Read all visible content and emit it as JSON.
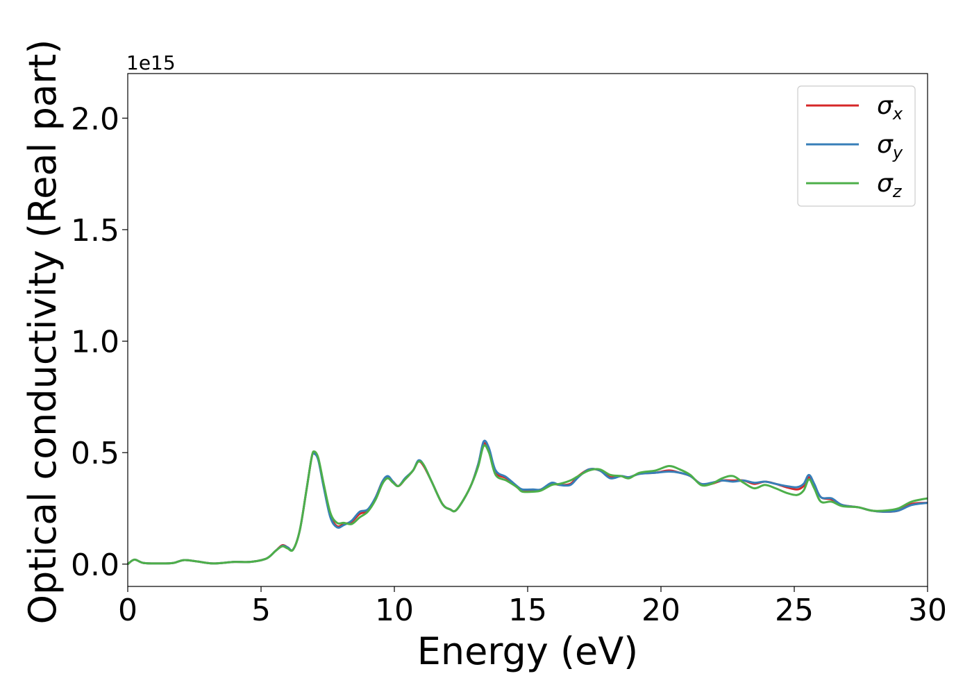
{
  "chart_data": {
    "type": "line",
    "xlabel": "Energy (eV)",
    "ylabel": "Optical conductivity (Real part)",
    "y_offset_label": "1e15",
    "xlim": [
      0,
      30
    ],
    "ylim": [
      -0.1,
      2.2
    ],
    "x_ticks": [
      0,
      5,
      10,
      15,
      20,
      25,
      30
    ],
    "x_tick_labels": [
      "0",
      "5",
      "10",
      "15",
      "20",
      "25",
      "30"
    ],
    "y_ticks": [
      0.0,
      0.5,
      1.0,
      1.5,
      2.0
    ],
    "y_tick_labels": [
      "0.0",
      "0.5",
      "1.0",
      "1.5",
      "2.0"
    ],
    "grid": false,
    "legend_position": "top-right",
    "series": [
      {
        "name": "σx",
        "name_base": "σ",
        "name_sub": "x",
        "color": "#d62728",
        "points": [
          [
            0,
            0.0
          ],
          [
            0.25,
            0.02
          ],
          [
            0.6,
            0.005
          ],
          [
            1.2,
            0.003
          ],
          [
            1.7,
            0.005
          ],
          [
            2.1,
            0.018
          ],
          [
            2.6,
            0.012
          ],
          [
            3.2,
            0.003
          ],
          [
            4.0,
            0.01
          ],
          [
            4.6,
            0.01
          ],
          [
            5.2,
            0.025
          ],
          [
            5.55,
            0.06
          ],
          [
            5.8,
            0.085
          ],
          [
            6.0,
            0.075
          ],
          [
            6.2,
            0.065
          ],
          [
            6.45,
            0.15
          ],
          [
            6.7,
            0.33
          ],
          [
            6.9,
            0.48
          ],
          [
            7.0,
            0.5
          ],
          [
            7.15,
            0.47
          ],
          [
            7.35,
            0.35
          ],
          [
            7.6,
            0.22
          ],
          [
            7.85,
            0.17
          ],
          [
            8.1,
            0.18
          ],
          [
            8.4,
            0.19
          ],
          [
            8.7,
            0.225
          ],
          [
            9.0,
            0.24
          ],
          [
            9.3,
            0.3
          ],
          [
            9.55,
            0.37
          ],
          [
            9.75,
            0.39
          ],
          [
            9.95,
            0.37
          ],
          [
            10.15,
            0.35
          ],
          [
            10.4,
            0.38
          ],
          [
            10.7,
            0.42
          ],
          [
            10.9,
            0.46
          ],
          [
            11.1,
            0.44
          ],
          [
            11.4,
            0.37
          ],
          [
            11.8,
            0.27
          ],
          [
            12.1,
            0.245
          ],
          [
            12.3,
            0.24
          ],
          [
            12.6,
            0.29
          ],
          [
            12.9,
            0.36
          ],
          [
            13.15,
            0.45
          ],
          [
            13.35,
            0.54
          ],
          [
            13.55,
            0.51
          ],
          [
            13.8,
            0.41
          ],
          [
            14.2,
            0.385
          ],
          [
            14.6,
            0.345
          ],
          [
            14.8,
            0.33
          ],
          [
            15.2,
            0.33
          ],
          [
            15.5,
            0.335
          ],
          [
            15.9,
            0.36
          ],
          [
            16.2,
            0.355
          ],
          [
            16.6,
            0.36
          ],
          [
            16.9,
            0.395
          ],
          [
            17.3,
            0.425
          ],
          [
            17.7,
            0.42
          ],
          [
            18.1,
            0.39
          ],
          [
            18.5,
            0.395
          ],
          [
            18.8,
            0.39
          ],
          [
            19.2,
            0.405
          ],
          [
            19.8,
            0.41
          ],
          [
            20.3,
            0.42
          ],
          [
            20.7,
            0.41
          ],
          [
            21.1,
            0.395
          ],
          [
            21.5,
            0.36
          ],
          [
            21.9,
            0.36
          ],
          [
            22.3,
            0.375
          ],
          [
            22.7,
            0.375
          ],
          [
            23.1,
            0.375
          ],
          [
            23.5,
            0.36
          ],
          [
            23.9,
            0.37
          ],
          [
            24.3,
            0.36
          ],
          [
            24.7,
            0.345
          ],
          [
            25.1,
            0.335
          ],
          [
            25.35,
            0.35
          ],
          [
            25.55,
            0.39
          ],
          [
            25.75,
            0.355
          ],
          [
            26.0,
            0.3
          ],
          [
            26.4,
            0.29
          ],
          [
            26.8,
            0.265
          ],
          [
            27.4,
            0.255
          ],
          [
            27.9,
            0.24
          ],
          [
            28.4,
            0.235
          ],
          [
            28.9,
            0.24
          ],
          [
            29.4,
            0.27
          ],
          [
            30.0,
            0.275
          ]
        ]
      },
      {
        "name": "σy",
        "name_base": "σ",
        "name_sub": "y",
        "color": "#377eb8",
        "points": [
          [
            0,
            0.0
          ],
          [
            0.25,
            0.02
          ],
          [
            0.6,
            0.005
          ],
          [
            1.2,
            0.003
          ],
          [
            1.7,
            0.005
          ],
          [
            2.1,
            0.018
          ],
          [
            2.6,
            0.012
          ],
          [
            3.2,
            0.003
          ],
          [
            4.0,
            0.01
          ],
          [
            4.6,
            0.01
          ],
          [
            5.2,
            0.025
          ],
          [
            5.55,
            0.06
          ],
          [
            5.8,
            0.082
          ],
          [
            6.0,
            0.075
          ],
          [
            6.2,
            0.065
          ],
          [
            6.45,
            0.15
          ],
          [
            6.7,
            0.33
          ],
          [
            6.9,
            0.48
          ],
          [
            7.0,
            0.495
          ],
          [
            7.15,
            0.465
          ],
          [
            7.35,
            0.345
          ],
          [
            7.6,
            0.21
          ],
          [
            7.85,
            0.165
          ],
          [
            8.1,
            0.175
          ],
          [
            8.4,
            0.195
          ],
          [
            8.7,
            0.235
          ],
          [
            9.0,
            0.245
          ],
          [
            9.3,
            0.3
          ],
          [
            9.55,
            0.37
          ],
          [
            9.75,
            0.395
          ],
          [
            9.95,
            0.37
          ],
          [
            10.15,
            0.35
          ],
          [
            10.4,
            0.385
          ],
          [
            10.7,
            0.42
          ],
          [
            10.9,
            0.465
          ],
          [
            11.1,
            0.445
          ],
          [
            11.4,
            0.37
          ],
          [
            11.8,
            0.27
          ],
          [
            12.1,
            0.245
          ],
          [
            12.3,
            0.24
          ],
          [
            12.6,
            0.29
          ],
          [
            12.9,
            0.36
          ],
          [
            13.15,
            0.45
          ],
          [
            13.35,
            0.55
          ],
          [
            13.55,
            0.52
          ],
          [
            13.8,
            0.42
          ],
          [
            14.2,
            0.39
          ],
          [
            14.6,
            0.35
          ],
          [
            14.8,
            0.335
          ],
          [
            15.2,
            0.335
          ],
          [
            15.5,
            0.335
          ],
          [
            15.9,
            0.365
          ],
          [
            16.2,
            0.355
          ],
          [
            16.6,
            0.355
          ],
          [
            16.9,
            0.39
          ],
          [
            17.3,
            0.425
          ],
          [
            17.7,
            0.42
          ],
          [
            18.1,
            0.385
          ],
          [
            18.5,
            0.395
          ],
          [
            18.8,
            0.39
          ],
          [
            19.2,
            0.405
          ],
          [
            19.8,
            0.41
          ],
          [
            20.3,
            0.415
          ],
          [
            20.7,
            0.41
          ],
          [
            21.1,
            0.395
          ],
          [
            21.5,
            0.36
          ],
          [
            21.9,
            0.365
          ],
          [
            22.3,
            0.375
          ],
          [
            22.7,
            0.37
          ],
          [
            23.1,
            0.375
          ],
          [
            23.5,
            0.365
          ],
          [
            23.9,
            0.37
          ],
          [
            24.3,
            0.36
          ],
          [
            24.7,
            0.35
          ],
          [
            25.1,
            0.345
          ],
          [
            25.35,
            0.36
          ],
          [
            25.55,
            0.4
          ],
          [
            25.75,
            0.36
          ],
          [
            26.0,
            0.3
          ],
          [
            26.4,
            0.295
          ],
          [
            26.8,
            0.265
          ],
          [
            27.4,
            0.255
          ],
          [
            27.9,
            0.24
          ],
          [
            28.4,
            0.235
          ],
          [
            28.9,
            0.24
          ],
          [
            29.4,
            0.265
          ],
          [
            30.0,
            0.275
          ]
        ]
      },
      {
        "name": "σz",
        "name_base": "σ",
        "name_sub": "z",
        "color": "#4daf4a",
        "points": [
          [
            0,
            0.0
          ],
          [
            0.25,
            0.02
          ],
          [
            0.6,
            0.005
          ],
          [
            1.2,
            0.003
          ],
          [
            1.7,
            0.005
          ],
          [
            2.1,
            0.018
          ],
          [
            2.6,
            0.012
          ],
          [
            3.2,
            0.003
          ],
          [
            4.0,
            0.01
          ],
          [
            4.6,
            0.01
          ],
          [
            5.2,
            0.025
          ],
          [
            5.55,
            0.06
          ],
          [
            5.8,
            0.08
          ],
          [
            6.0,
            0.07
          ],
          [
            6.2,
            0.065
          ],
          [
            6.45,
            0.15
          ],
          [
            6.7,
            0.33
          ],
          [
            6.9,
            0.48
          ],
          [
            7.0,
            0.505
          ],
          [
            7.15,
            0.475
          ],
          [
            7.35,
            0.36
          ],
          [
            7.6,
            0.23
          ],
          [
            7.85,
            0.185
          ],
          [
            8.1,
            0.185
          ],
          [
            8.4,
            0.18
          ],
          [
            8.7,
            0.21
          ],
          [
            9.0,
            0.235
          ],
          [
            9.3,
            0.29
          ],
          [
            9.55,
            0.36
          ],
          [
            9.75,
            0.385
          ],
          [
            9.95,
            0.365
          ],
          [
            10.15,
            0.35
          ],
          [
            10.4,
            0.38
          ],
          [
            10.7,
            0.42
          ],
          [
            10.9,
            0.46
          ],
          [
            11.1,
            0.445
          ],
          [
            11.4,
            0.37
          ],
          [
            11.8,
            0.27
          ],
          [
            12.1,
            0.245
          ],
          [
            12.3,
            0.24
          ],
          [
            12.6,
            0.29
          ],
          [
            12.9,
            0.36
          ],
          [
            13.15,
            0.44
          ],
          [
            13.35,
            0.53
          ],
          [
            13.55,
            0.5
          ],
          [
            13.8,
            0.4
          ],
          [
            14.2,
            0.375
          ],
          [
            14.6,
            0.345
          ],
          [
            14.8,
            0.325
          ],
          [
            15.2,
            0.325
          ],
          [
            15.5,
            0.33
          ],
          [
            15.9,
            0.355
          ],
          [
            16.2,
            0.36
          ],
          [
            16.6,
            0.375
          ],
          [
            16.9,
            0.395
          ],
          [
            17.3,
            0.42
          ],
          [
            17.7,
            0.425
          ],
          [
            18.1,
            0.4
          ],
          [
            18.5,
            0.395
          ],
          [
            18.8,
            0.385
          ],
          [
            19.2,
            0.41
          ],
          [
            19.8,
            0.42
          ],
          [
            20.3,
            0.44
          ],
          [
            20.7,
            0.425
          ],
          [
            21.1,
            0.4
          ],
          [
            21.5,
            0.355
          ],
          [
            21.9,
            0.36
          ],
          [
            22.3,
            0.385
          ],
          [
            22.7,
            0.395
          ],
          [
            23.1,
            0.365
          ],
          [
            23.5,
            0.34
          ],
          [
            23.9,
            0.355
          ],
          [
            24.3,
            0.34
          ],
          [
            24.7,
            0.32
          ],
          [
            25.1,
            0.31
          ],
          [
            25.35,
            0.33
          ],
          [
            25.55,
            0.38
          ],
          [
            25.75,
            0.34
          ],
          [
            26.0,
            0.28
          ],
          [
            26.4,
            0.28
          ],
          [
            26.8,
            0.26
          ],
          [
            27.4,
            0.255
          ],
          [
            27.9,
            0.24
          ],
          [
            28.4,
            0.24
          ],
          [
            28.9,
            0.25
          ],
          [
            29.4,
            0.28
          ],
          [
            30.0,
            0.295
          ]
        ]
      }
    ]
  }
}
